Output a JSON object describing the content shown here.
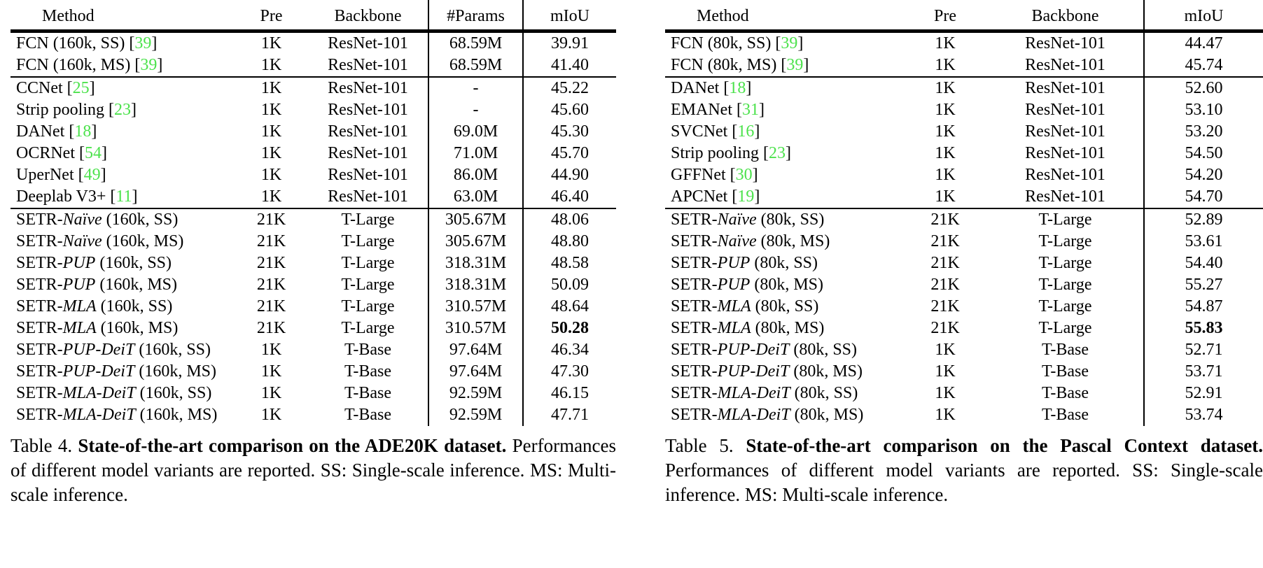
{
  "colors": {
    "citation": "#4ce24c",
    "text": "#000000",
    "background": "#ffffff"
  },
  "tables": [
    {
      "dom_id": "t4",
      "name": "ade20k-comparison",
      "columns": [
        {
          "key": "method",
          "label": "Method"
        },
        {
          "key": "pre",
          "label": "Pre"
        },
        {
          "key": "backbone",
          "label": "Backbone"
        },
        {
          "key": "params",
          "label": "#Params"
        },
        {
          "key": "miou",
          "label": "mIoU"
        }
      ],
      "vrule_after": [
        "backbone",
        "params"
      ],
      "groups": [
        {
          "rows": [
            {
              "method": [
                {
                  "t": "FCN (160k, SS) ["
                },
                {
                  "t": "39",
                  "s": "c"
                },
                {
                  "t": "]"
                }
              ],
              "pre": "1K",
              "backbone": "ResNet-101",
              "params": "68.59M",
              "miou": "39.91"
            },
            {
              "method": [
                {
                  "t": "FCN (160k, MS) ["
                },
                {
                  "t": "39",
                  "s": "c"
                },
                {
                  "t": "]"
                }
              ],
              "pre": "1K",
              "backbone": "ResNet-101",
              "params": "68.59M",
              "miou": "41.40"
            }
          ]
        },
        {
          "rows": [
            {
              "method": [
                {
                  "t": "CCNet ["
                },
                {
                  "t": "25",
                  "s": "c"
                },
                {
                  "t": "]"
                }
              ],
              "pre": "1K",
              "backbone": "ResNet-101",
              "params": "-",
              "miou": "45.22"
            },
            {
              "method": [
                {
                  "t": "Strip pooling ["
                },
                {
                  "t": "23",
                  "s": "c"
                },
                {
                  "t": "]"
                }
              ],
              "pre": "1K",
              "backbone": "ResNet-101",
              "params": "-",
              "miou": "45.60"
            },
            {
              "method": [
                {
                  "t": "DANet ["
                },
                {
                  "t": "18",
                  "s": "c"
                },
                {
                  "t": "]"
                }
              ],
              "pre": "1K",
              "backbone": "ResNet-101",
              "params": "69.0M",
              "miou": "45.30"
            },
            {
              "method": [
                {
                  "t": "OCRNet ["
                },
                {
                  "t": "54",
                  "s": "c"
                },
                {
                  "t": "]"
                }
              ],
              "pre": "1K",
              "backbone": "ResNet-101",
              "params": "71.0M",
              "miou": "45.70"
            },
            {
              "method": [
                {
                  "t": "UperNet ["
                },
                {
                  "t": "49",
                  "s": "c"
                },
                {
                  "t": "]"
                }
              ],
              "pre": "1K",
              "backbone": "ResNet-101",
              "params": "86.0M",
              "miou": "44.90"
            },
            {
              "method": [
                {
                  "t": "Deeplab V3+ ["
                },
                {
                  "t": "11",
                  "s": "c"
                },
                {
                  "t": "]"
                }
              ],
              "pre": "1K",
              "backbone": "ResNet-101",
              "params": "63.0M",
              "miou": "46.40"
            }
          ]
        },
        {
          "rows": [
            {
              "method": [
                {
                  "t": "SETR-"
                },
                {
                  "t": "Naïve",
                  "s": "i"
                },
                {
                  "t": " (160k, SS)"
                }
              ],
              "pre": "21K",
              "backbone": "T-Large",
              "params": "305.67M",
              "miou": "48.06"
            },
            {
              "method": [
                {
                  "t": "SETR-"
                },
                {
                  "t": "Naïve",
                  "s": "i"
                },
                {
                  "t": " (160k, MS)"
                }
              ],
              "pre": "21K",
              "backbone": "T-Large",
              "params": "305.67M",
              "miou": "48.80"
            },
            {
              "method": [
                {
                  "t": "SETR-"
                },
                {
                  "t": "PUP",
                  "s": "i"
                },
                {
                  "t": " (160k, SS)"
                }
              ],
              "pre": "21K",
              "backbone": "T-Large",
              "params": "318.31M",
              "miou": "48.58"
            },
            {
              "method": [
                {
                  "t": "SETR-"
                },
                {
                  "t": "PUP",
                  "s": "i"
                },
                {
                  "t": " (160k, MS)"
                }
              ],
              "pre": "21K",
              "backbone": "T-Large",
              "params": "318.31M",
              "miou": "50.09"
            },
            {
              "method": [
                {
                  "t": "SETR-"
                },
                {
                  "t": "MLA",
                  "s": "i"
                },
                {
                  "t": " (160k, SS)"
                }
              ],
              "pre": "21K",
              "backbone": "T-Large",
              "params": "310.57M",
              "miou": "48.64"
            },
            {
              "method": [
                {
                  "t": "SETR-"
                },
                {
                  "t": "MLA",
                  "s": "i"
                },
                {
                  "t": " (160k, MS)"
                }
              ],
              "pre": "21K",
              "backbone": "T-Large",
              "params": "310.57M",
              "miou": "50.28",
              "miou_bold": true
            },
            {
              "method": [
                {
                  "t": "SETR-"
                },
                {
                  "t": "PUP-DeiT",
                  "s": "i"
                },
                {
                  "t": " (160k, SS)"
                }
              ],
              "pre": "1K",
              "backbone": "T-Base",
              "params": "97.64M",
              "miou": "46.34"
            },
            {
              "method": [
                {
                  "t": "SETR-"
                },
                {
                  "t": "PUP-DeiT",
                  "s": "i"
                },
                {
                  "t": " (160k, MS)"
                }
              ],
              "pre": "1K",
              "backbone": "T-Base",
              "params": "97.64M",
              "miou": "47.30"
            },
            {
              "method": [
                {
                  "t": "SETR-"
                },
                {
                  "t": "MLA-DeiT",
                  "s": "i"
                },
                {
                  "t": " (160k, SS)"
                }
              ],
              "pre": "1K",
              "backbone": "T-Base",
              "params": "92.59M",
              "miou": "46.15"
            },
            {
              "method": [
                {
                  "t": "SETR-"
                },
                {
                  "t": "MLA-DeiT",
                  "s": "i"
                },
                {
                  "t": " (160k, MS)"
                }
              ],
              "pre": "1K",
              "backbone": "T-Base",
              "params": "92.59M",
              "miou": "47.71"
            }
          ]
        }
      ],
      "caption": {
        "label": "Table 4.",
        "bold": "State-of-the-art comparison on the ADE20K dataset.",
        "rest": "Performances of different model variants are reported. SS: Single-scale inference. MS: Multi-scale inference."
      }
    },
    {
      "dom_id": "t5",
      "name": "pascal-context-comparison",
      "columns": [
        {
          "key": "method",
          "label": "Method"
        },
        {
          "key": "pre",
          "label": "Pre"
        },
        {
          "key": "backbone",
          "label": "Backbone"
        },
        {
          "key": "miou",
          "label": "mIoU"
        }
      ],
      "vrule_after": [
        "backbone"
      ],
      "groups": [
        {
          "rows": [
            {
              "method": [
                {
                  "t": "FCN (80k, SS) ["
                },
                {
                  "t": "39",
                  "s": "c"
                },
                {
                  "t": "]"
                }
              ],
              "pre": "1K",
              "backbone": "ResNet-101",
              "miou": "44.47"
            },
            {
              "method": [
                {
                  "t": "FCN (80k, MS) ["
                },
                {
                  "t": "39",
                  "s": "c"
                },
                {
                  "t": "]"
                }
              ],
              "pre": "1K",
              "backbone": "ResNet-101",
              "miou": "45.74"
            }
          ]
        },
        {
          "rows": [
            {
              "method": [
                {
                  "t": "DANet ["
                },
                {
                  "t": "18",
                  "s": "c"
                },
                {
                  "t": "]"
                }
              ],
              "pre": "1K",
              "backbone": "ResNet-101",
              "miou": "52.60"
            },
            {
              "method": [
                {
                  "t": "EMANet ["
                },
                {
                  "t": "31",
                  "s": "c"
                },
                {
                  "t": "]"
                }
              ],
              "pre": "1K",
              "backbone": "ResNet-101",
              "miou": "53.10"
            },
            {
              "method": [
                {
                  "t": "SVCNet ["
                },
                {
                  "t": "16",
                  "s": "c"
                },
                {
                  "t": "]"
                }
              ],
              "pre": "1K",
              "backbone": "ResNet-101",
              "miou": "53.20"
            },
            {
              "method": [
                {
                  "t": "Strip pooling ["
                },
                {
                  "t": "23",
                  "s": "c"
                },
                {
                  "t": "]"
                }
              ],
              "pre": "1K",
              "backbone": "ResNet-101",
              "miou": "54.50"
            },
            {
              "method": [
                {
                  "t": "GFFNet ["
                },
                {
                  "t": "30",
                  "s": "c"
                },
                {
                  "t": "]"
                }
              ],
              "pre": "1K",
              "backbone": "ResNet-101",
              "miou": "54.20"
            },
            {
              "method": [
                {
                  "t": "APCNet ["
                },
                {
                  "t": "19",
                  "s": "c"
                },
                {
                  "t": "]"
                }
              ],
              "pre": "1K",
              "backbone": "ResNet-101",
              "miou": "54.70"
            }
          ]
        },
        {
          "rows": [
            {
              "method": [
                {
                  "t": "SETR-"
                },
                {
                  "t": "Naïve",
                  "s": "i"
                },
                {
                  "t": " (80k, SS)"
                }
              ],
              "pre": "21K",
              "backbone": "T-Large",
              "miou": "52.89"
            },
            {
              "method": [
                {
                  "t": "SETR-"
                },
                {
                  "t": "Naïve",
                  "s": "i"
                },
                {
                  "t": " (80k, MS)"
                }
              ],
              "pre": "21K",
              "backbone": "T-Large",
              "miou": "53.61"
            },
            {
              "method": [
                {
                  "t": "SETR-"
                },
                {
                  "t": "PUP",
                  "s": "i"
                },
                {
                  "t": " (80k, SS)"
                }
              ],
              "pre": "21K",
              "backbone": "T-Large",
              "miou": "54.40"
            },
            {
              "method": [
                {
                  "t": "SETR-"
                },
                {
                  "t": "PUP",
                  "s": "i"
                },
                {
                  "t": " (80k, MS)"
                }
              ],
              "pre": "21K",
              "backbone": "T-Large",
              "miou": "55.27"
            },
            {
              "method": [
                {
                  "t": "SETR-"
                },
                {
                  "t": "MLA",
                  "s": "i"
                },
                {
                  "t": " (80k, SS)"
                }
              ],
              "pre": "21K",
              "backbone": "T-Large",
              "miou": "54.87"
            },
            {
              "method": [
                {
                  "t": "SETR-"
                },
                {
                  "t": "MLA",
                  "s": "i"
                },
                {
                  "t": " (80k, MS)"
                }
              ],
              "pre": "21K",
              "backbone": "T-Large",
              "miou": "55.83",
              "miou_bold": true
            },
            {
              "method": [
                {
                  "t": "SETR-"
                },
                {
                  "t": "PUP-DeiT",
                  "s": "i"
                },
                {
                  "t": " (80k, SS)"
                }
              ],
              "pre": "1K",
              "backbone": "T-Base",
              "miou": "52.71"
            },
            {
              "method": [
                {
                  "t": "SETR-"
                },
                {
                  "t": "PUP-DeiT",
                  "s": "i"
                },
                {
                  "t": " (80k, MS)"
                }
              ],
              "pre": "1K",
              "backbone": "T-Base",
              "miou": "53.71"
            },
            {
              "method": [
                {
                  "t": "SETR-"
                },
                {
                  "t": "MLA-DeiT",
                  "s": "i"
                },
                {
                  "t": " (80k, SS)"
                }
              ],
              "pre": "1K",
              "backbone": "T-Base",
              "miou": "52.91"
            },
            {
              "method": [
                {
                  "t": "SETR-"
                },
                {
                  "t": "MLA-DeiT",
                  "s": "i"
                },
                {
                  "t": " (80k, MS)"
                }
              ],
              "pre": "1K",
              "backbone": "T-Base",
              "miou": "53.74"
            }
          ]
        }
      ],
      "caption": {
        "label": "Table 5.",
        "bold": "State-of-the-art comparison on the Pascal Context dataset.",
        "rest": "Performances of different model variants are reported. SS: Single-scale inference. MS: Multi-scale inference."
      }
    }
  ]
}
